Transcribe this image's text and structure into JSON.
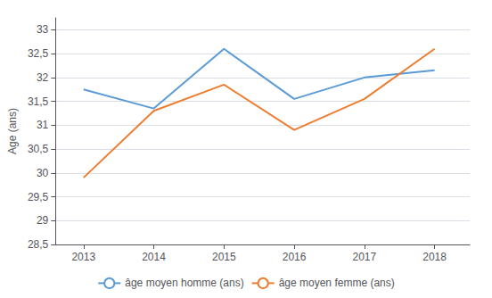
{
  "chart_data": {
    "type": "line",
    "ylabel": "Age (ans)",
    "x": [
      2013,
      2014,
      2015,
      2016,
      2017,
      2018
    ],
    "xlim": [
      2012.6,
      2018.5
    ],
    "xticks": [
      2013,
      2014,
      2015,
      2016,
      2017,
      2018
    ],
    "ylim": [
      28.5,
      33.25
    ],
    "yticks": [
      {
        "value": 28.5,
        "label": "28,5"
      },
      29,
      {
        "value": 29.5,
        "label": "29,5"
      },
      30,
      {
        "value": 30.5,
        "label": "30,5"
      },
      31,
      {
        "value": 31.5,
        "label": "31,5"
      },
      32,
      {
        "value": 32.5,
        "label": "32,5"
      },
      33
    ],
    "grid": true,
    "legend": "bottom",
    "series": [
      {
        "name": "âge moyen homme (ans)",
        "color": "#5B9BD5",
        "values": [
          31.75,
          31.35,
          32.6,
          31.55,
          32.0,
          32.15
        ]
      },
      {
        "name": "âge moyen femme (ans)",
        "color": "#ED7D31",
        "values": [
          29.9,
          31.3,
          31.85,
          30.9,
          31.55,
          32.6
        ]
      }
    ]
  }
}
